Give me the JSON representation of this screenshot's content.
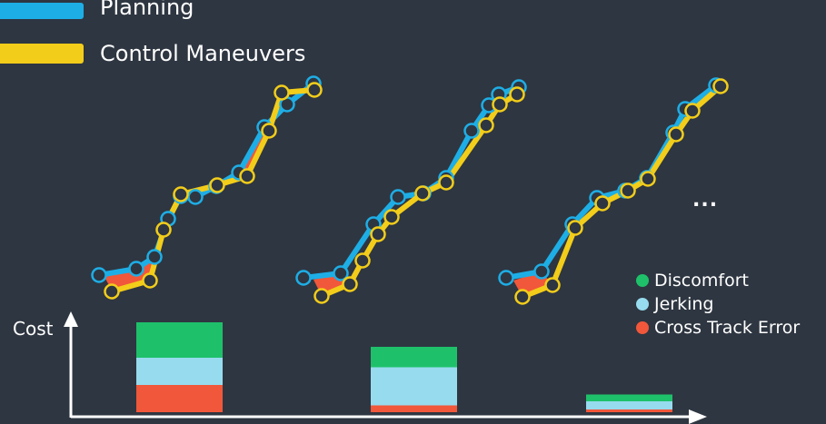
{
  "legend": {
    "planning": {
      "label": "Planning",
      "color": "#1eaee6"
    },
    "control": {
      "label": "Control Maneuvers",
      "color": "#f2cd1a"
    }
  },
  "cost_key": [
    {
      "label": "Discomfort",
      "color": "#1ec16a"
    },
    {
      "label": "Jerking",
      "color": "#97dbee"
    },
    {
      "label": "Cross Track Error",
      "color": "#f1573a"
    }
  ],
  "cost_axis_label": "Cost",
  "ellipsis": "...",
  "chart_data": {
    "type": "bar",
    "stacked": true,
    "series": [
      {
        "name": "Cross Track Error",
        "values": [
          1.0,
          0.25,
          0.1
        ]
      },
      {
        "name": "Jerking",
        "values": [
          1.0,
          1.4,
          0.3
        ]
      },
      {
        "name": "Discomfort",
        "values": [
          1.3,
          0.75,
          0.25
        ]
      }
    ]
  }
}
